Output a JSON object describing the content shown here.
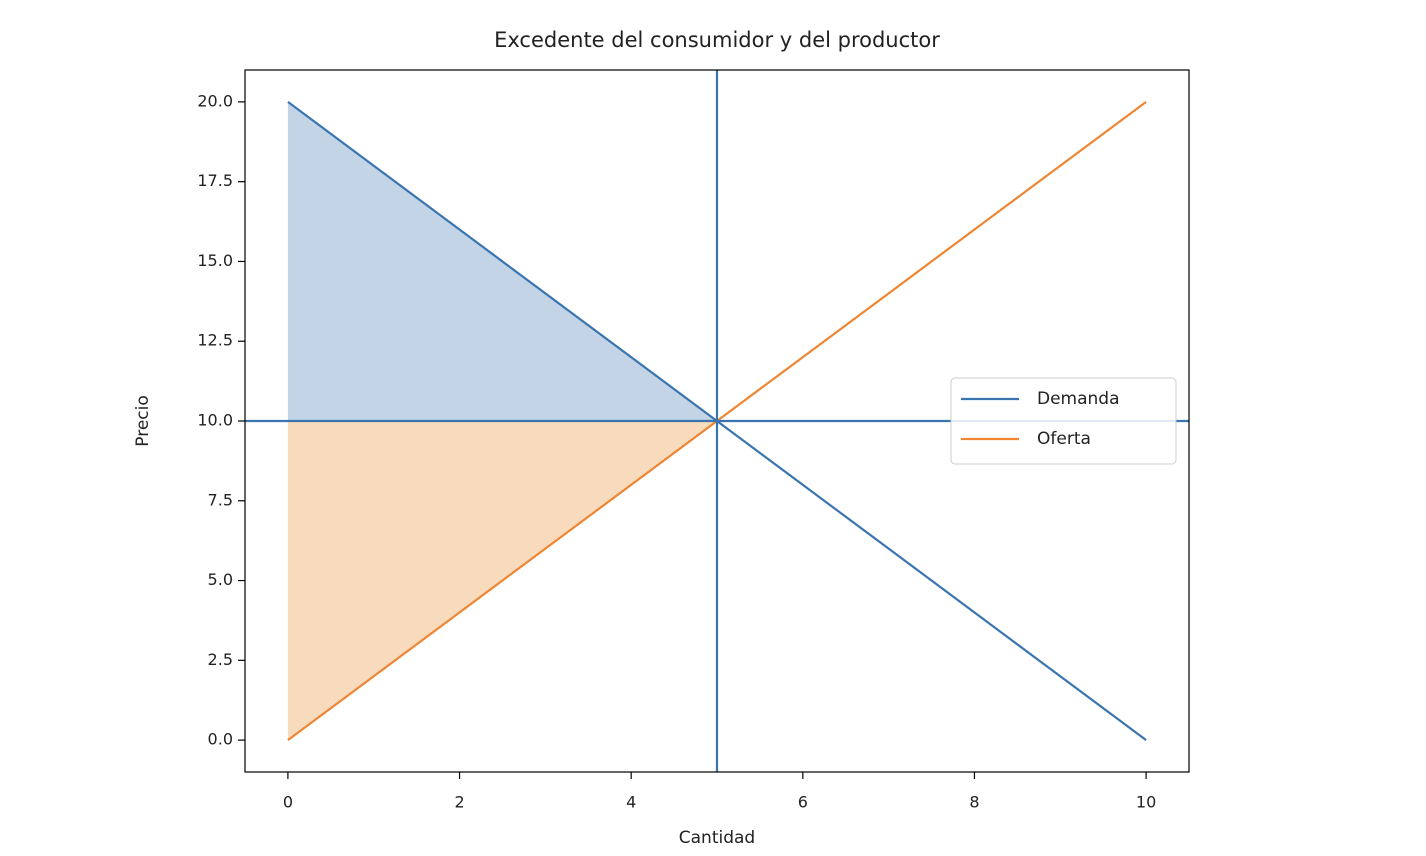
{
  "chart_data": {
    "type": "line",
    "title": "Excedente del consumidor y del productor",
    "xlabel": "Cantidad",
    "ylabel": "Precio",
    "x": [
      0,
      10
    ],
    "series": [
      {
        "name": "Demanda",
        "color": "#3a75b0",
        "values": [
          20,
          0
        ]
      },
      {
        "name": "Oferta",
        "color": "#ef8633",
        "values": [
          0,
          20
        ]
      }
    ],
    "fills": [
      {
        "x": [
          0,
          5
        ],
        "upper": [
          20,
          10
        ],
        "lower": [
          10,
          10
        ],
        "color": "#c2d4e5"
      },
      {
        "x": [
          0,
          5
        ],
        "upper": [
          10,
          10
        ],
        "lower": [
          0,
          10
        ],
        "color": "#f8dabd"
      }
    ],
    "hlines": [
      {
        "value": 10,
        "color": "#3a75b0"
      }
    ],
    "vlines": [
      {
        "value": 5,
        "color": "#3a75b0"
      }
    ],
    "xlim": [
      -0.5,
      10.5
    ],
    "ylim": [
      -1,
      21
    ],
    "xticks": [
      0,
      2,
      4,
      6,
      8,
      10
    ],
    "yticks": [
      {
        "value": 0,
        "label": "0.0"
      },
      {
        "value": 2.5,
        "label": "2.5"
      },
      {
        "value": 5,
        "label": "5.0"
      },
      {
        "value": 7.5,
        "label": "7.5"
      },
      {
        "value": 10,
        "label": "10.0"
      },
      {
        "value": 12.5,
        "label": "12.5"
      },
      {
        "value": 15,
        "label": "15.0"
      },
      {
        "value": 17.5,
        "label": "17.5"
      },
      {
        "value": 20,
        "label": "20.0"
      }
    ],
    "legend": "center right"
  }
}
